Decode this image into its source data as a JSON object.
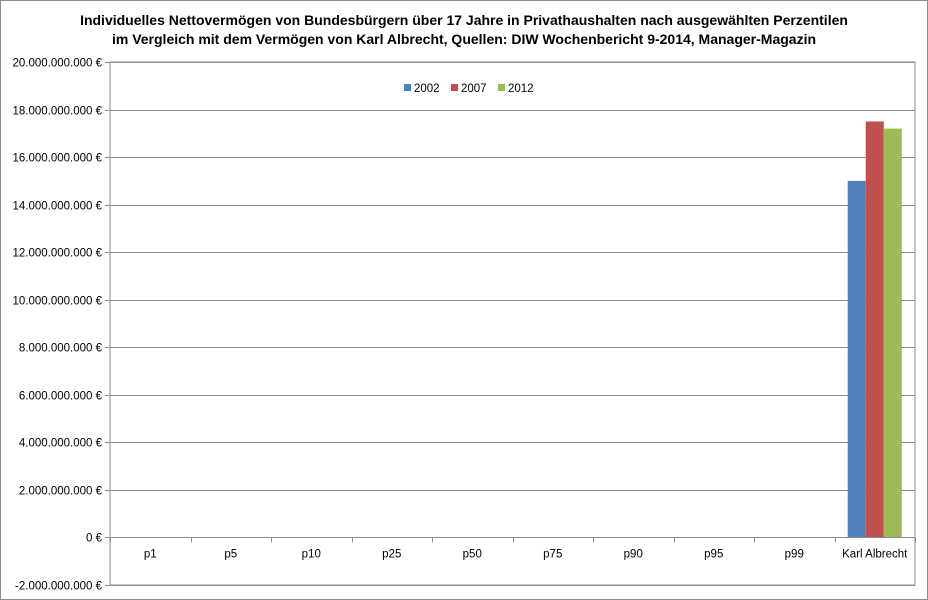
{
  "title_line1": "Individuelles Nettovermögen von Bundesbürgern über 17 Jahre in Privathaushalten nach ausgewählten Perzentilen",
  "title_line2": "im Vergleich mit dem Vermögen von Karl Albrecht, Quellen: DIW Wochenbericht 9-2014, Manager-Magazin",
  "chart_data": {
    "type": "bar",
    "title": "Individuelles Nettovermögen von Bundesbürgern über 17 Jahre in Privathaushalten nach ausgewählten Perzentilen im Vergleich mit dem Vermögen von Karl Albrecht, Quellen: DIW Wochenbericht 9-2014, Manager-Magazin",
    "categories": [
      "p1",
      "p5",
      "p10",
      "p25",
      "p50",
      "p75",
      "p90",
      "p95",
      "p99",
      "Karl Albrecht"
    ],
    "series": [
      {
        "name": "2002",
        "color": "#4f81bd",
        "values": [
          0,
          0,
          0,
          0,
          0,
          0,
          0,
          0,
          0,
          15000000000
        ]
      },
      {
        "name": "2007",
        "color": "#c0504d",
        "values": [
          0,
          0,
          0,
          0,
          0,
          0,
          0,
          0,
          0,
          17500000000
        ]
      },
      {
        "name": "2012",
        "color": "#9bbb59",
        "values": [
          0,
          0,
          0,
          0,
          0,
          0,
          0,
          0,
          0,
          17200000000
        ]
      }
    ],
    "ylim": [
      -2000000000,
      20000000000
    ],
    "yticks": [
      -2000000000,
      0,
      2000000000,
      4000000000,
      6000000000,
      8000000000,
      10000000000,
      12000000000,
      14000000000,
      16000000000,
      18000000000,
      20000000000
    ],
    "ytick_labels": [
      "-2.000.000.000 €",
      "0 €",
      "2.000.000.000 €",
      "4.000.000.000 €",
      "6.000.000.000 €",
      "8.000.000.000 €",
      "10.000.000.000 €",
      "12.000.000.000 €",
      "14.000.000.000 €",
      "16.000.000.000 €",
      "18.000.000.000 €",
      "20.000.000.000 €"
    ],
    "xlabel": "",
    "ylabel": "",
    "grid": true,
    "legend_position": "top-center"
  }
}
